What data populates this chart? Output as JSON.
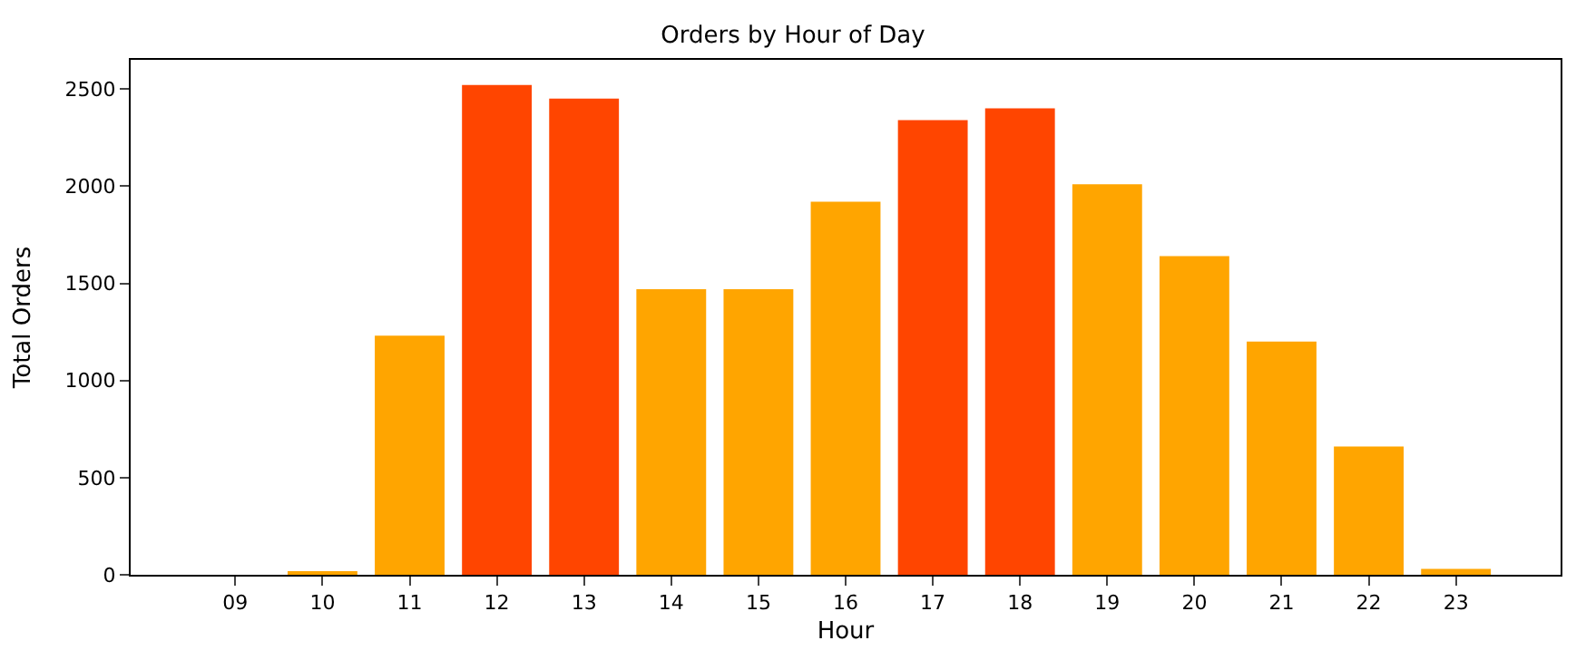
{
  "chart_data": {
    "type": "bar",
    "title": "Orders by Hour of Day",
    "xlabel": "Hour",
    "ylabel": "Total Orders",
    "categories": [
      "09",
      "10",
      "11",
      "12",
      "13",
      "14",
      "15",
      "16",
      "17",
      "18",
      "19",
      "20",
      "21",
      "22",
      "23"
    ],
    "values": [
      0,
      10,
      1230,
      2520,
      2450,
      1470,
      1470,
      1920,
      2340,
      2400,
      2010,
      1640,
      1200,
      660,
      30
    ],
    "colors": [
      "#ffa500",
      "#ffa500",
      "#ffa500",
      "#ff4500",
      "#ff4500",
      "#ffa500",
      "#ffa500",
      "#ffa500",
      "#ff4500",
      "#ff4500",
      "#ffa500",
      "#ffa500",
      "#ffa500",
      "#ffa500",
      "#ffa500"
    ],
    "ylim": [
      0,
      2650
    ],
    "yticks": [
      0,
      500,
      1000,
      1500,
      2000,
      2500
    ]
  }
}
